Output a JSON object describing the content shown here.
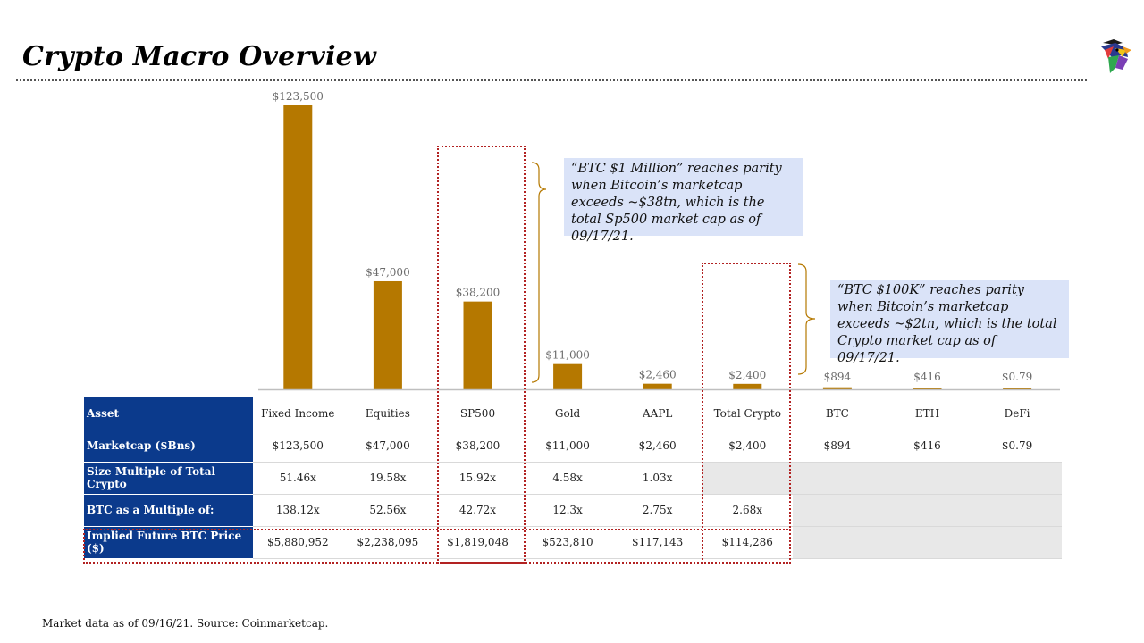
{
  "header": {
    "title": "Crypto Macro Overview",
    "logo_icon": "eagle-logo-icon"
  },
  "chart_data": {
    "type": "bar",
    "categories": [
      "Fixed Income",
      "Equities",
      "SP500",
      "Gold",
      "AAPL",
      "Total Crypto",
      "BTC",
      "ETH",
      "DeFi"
    ],
    "values": [
      123500,
      47000,
      38200,
      11000,
      2460,
      2400,
      894,
      416,
      0.79
    ],
    "value_labels": [
      "$123,500",
      "$47,000",
      "$38,200",
      "$11,000",
      "$2,460",
      "$2,400",
      "$894",
      "$416",
      "$0.79"
    ],
    "bar_color": "#b57800",
    "ylim": [
      0,
      123500
    ],
    "grid": false
  },
  "callouts": [
    {
      "text": "“BTC $1 Million” reaches parity when Bitcoin’s marketcap exceeds ~$38tn, which is the total Sp500 market cap as of 09/17/21."
    },
    {
      "text": "“BTC $100K” reaches parity when Bitcoin’s marketcap exceeds ~$2tn, which is the total Crypto market cap as of 09/17/21."
    }
  ],
  "table": {
    "rows": [
      {
        "label": "Asset",
        "cells": [
          "Fixed Income",
          "Equities",
          "SP500",
          "Gold",
          "AAPL",
          "Total Crypto",
          "BTC",
          "ETH",
          "DeFi"
        ]
      },
      {
        "label": "Marketcap ($Bns)",
        "cells": [
          "$123,500",
          "$47,000",
          "$38,200",
          "$11,000",
          "$2,460",
          "$2,400",
          "$894",
          "$416",
          "$0.79"
        ]
      },
      {
        "label": "Size Multiple of Total Crypto",
        "cells": [
          "51.46x",
          "19.58x",
          "15.92x",
          "4.58x",
          "1.03x",
          "",
          "",
          "",
          ""
        ]
      },
      {
        "label": "BTC as a Multiple of:",
        "cells": [
          "138.12x",
          "52.56x",
          "42.72x",
          "12.3x",
          "2.75x",
          "2.68x",
          "",
          "",
          ""
        ]
      },
      {
        "label": "Implied Future BTC Price ($)",
        "cells": [
          "$5,880,952",
          "$2,238,095",
          "$1,819,048",
          "$523,810",
          "$117,143",
          "$114,286",
          "",
          "",
          ""
        ]
      }
    ]
  },
  "colors": {
    "table_header": "#0b3a8c",
    "callout_bg": "#dae3f8",
    "highlight_border": "#b22222",
    "empty_cell": "#e8e8e8"
  },
  "footnote": "Market data as of 09/16/21. Source: Coinmarketcap."
}
